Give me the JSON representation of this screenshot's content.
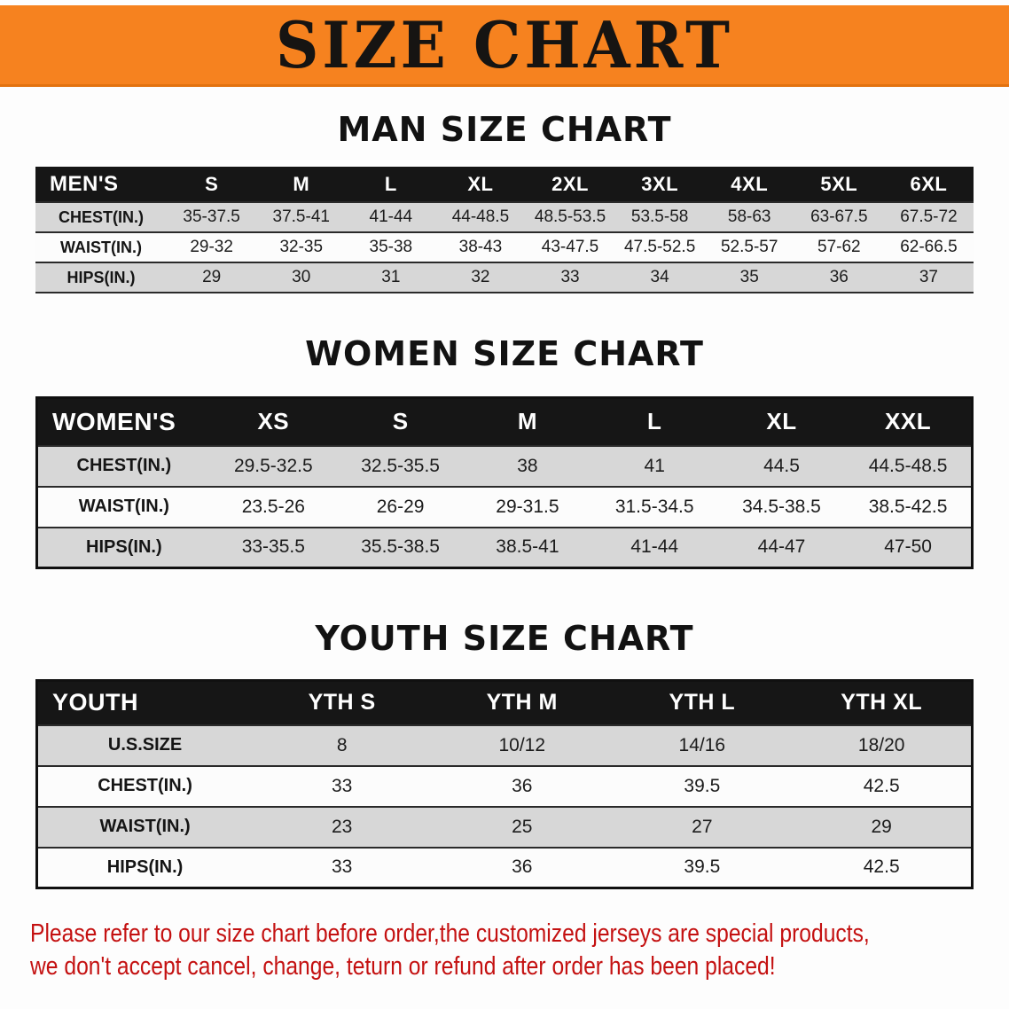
{
  "banner": {
    "title": "SIZE CHART",
    "bg_color": "#F6821F",
    "text_color": "#161412"
  },
  "chart_data": [
    {
      "type": "table",
      "title": "MAN SIZE CHART",
      "columns": [
        "MEN'S",
        "S",
        "M",
        "L",
        "XL",
        "2XL",
        "3XL",
        "4XL",
        "5XL",
        "6XL"
      ],
      "rows": [
        [
          "CHEST(IN.)",
          "35-37.5",
          "37.5-41",
          "41-44",
          "44-48.5",
          "48.5-53.5",
          "53.5-58",
          "58-63",
          "63-67.5",
          "67.5-72"
        ],
        [
          "WAIST(IN.)",
          "29-32",
          "32-35",
          "35-38",
          "38-43",
          "43-47.5",
          "47.5-52.5",
          "52.5-57",
          "57-62",
          "62-66.5"
        ],
        [
          "HIPS(IN.)",
          "29",
          "30",
          "31",
          "32",
          "33",
          "34",
          "35",
          "36",
          "37"
        ]
      ]
    },
    {
      "type": "table",
      "title": "WOMEN SIZE CHART",
      "columns": [
        "WOMEN'S",
        "XS",
        "S",
        "M",
        "L",
        "XL",
        "XXL"
      ],
      "rows": [
        [
          "CHEST(IN.)",
          "29.5-32.5",
          "32.5-35.5",
          "38",
          "41",
          "44.5",
          "44.5-48.5"
        ],
        [
          "WAIST(IN.)",
          "23.5-26",
          "26-29",
          "29-31.5",
          "31.5-34.5",
          "34.5-38.5",
          "38.5-42.5"
        ],
        [
          "HIPS(IN.)",
          "33-35.5",
          "35.5-38.5",
          "38.5-41",
          "41-44",
          "44-47",
          "47-50"
        ]
      ]
    },
    {
      "type": "table",
      "title": "YOUTH SIZE CHART",
      "columns": [
        "YOUTH",
        "YTH S",
        "YTH M",
        "YTH L",
        "YTH XL"
      ],
      "rows": [
        [
          "U.S.SIZE",
          "8",
          "10/12",
          "14/16",
          "18/20"
        ],
        [
          "CHEST(IN.)",
          "33",
          "36",
          "39.5",
          "42.5"
        ],
        [
          "WAIST(IN.)",
          "23",
          "25",
          "27",
          "29"
        ],
        [
          "HIPS(IN.)",
          "33",
          "36",
          "39.5",
          "42.5"
        ]
      ]
    }
  ],
  "disclaimer": {
    "line1": "Please refer to our size chart before order,the customized jerseys are special products,",
    "line2": "we don't accept cancel, change, teturn or refund after order has been placed!"
  }
}
